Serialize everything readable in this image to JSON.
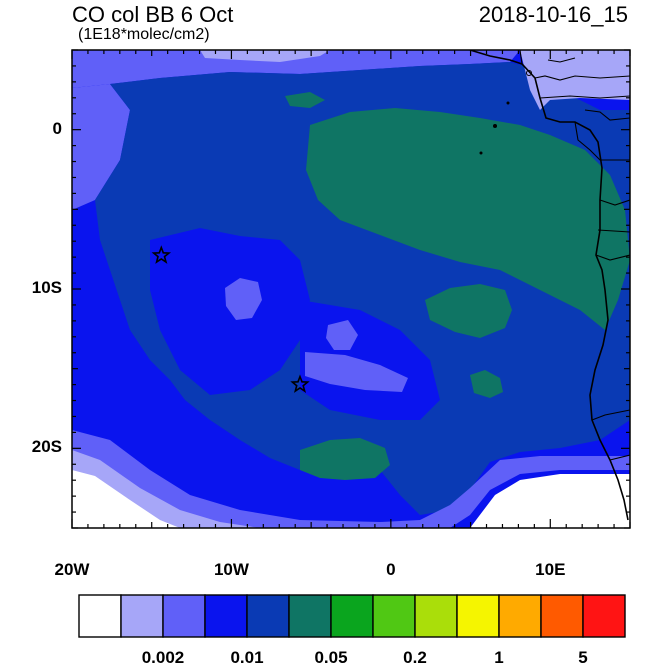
{
  "title": "CO col BB 6 Oct",
  "units": "(1E18*molec/cm2)",
  "timestamp": "2018-10-16_15",
  "y_axis_labels": [
    {
      "label": "0",
      "lat": 0
    },
    {
      "label": "10S",
      "lat": -10
    },
    {
      "label": "20S",
      "lat": -20
    }
  ],
  "x_axis_labels": [
    {
      "label": "20W",
      "lon": -20
    },
    {
      "label": "10W",
      "lon": -10
    },
    {
      "label": "0",
      "lon": 0
    },
    {
      "label": "10E",
      "lon": 10
    }
  ],
  "map_extent": {
    "lon_min": -20,
    "lon_max": 15,
    "lat_min": -25,
    "lat_max": 5
  },
  "markers": [
    {
      "name": "station-star-1",
      "lon": -14.4,
      "lat": -7.9
    },
    {
      "name": "station-star-2",
      "lon": -5.7,
      "lat": -16.0
    }
  ],
  "colorbar": {
    "colors": [
      "#ffffff",
      "#a6a6f8",
      "#6060f8",
      "#0a14ee",
      "#0a3ab4",
      "#0f7564",
      "#0aa51e",
      "#50c814",
      "#aade0a",
      "#f5f500",
      "#ffaa00",
      "#ff5a00",
      "#ff1414"
    ],
    "labels": [
      {
        "text": "0.002",
        "after_box": 1
      },
      {
        "text": "0.01",
        "after_box": 3
      },
      {
        "text": "0.05",
        "after_box": 5
      },
      {
        "text": "0.2",
        "after_box": 7
      },
      {
        "text": "1",
        "after_box": 9
      },
      {
        "text": "5",
        "after_box": 11
      }
    ]
  }
}
